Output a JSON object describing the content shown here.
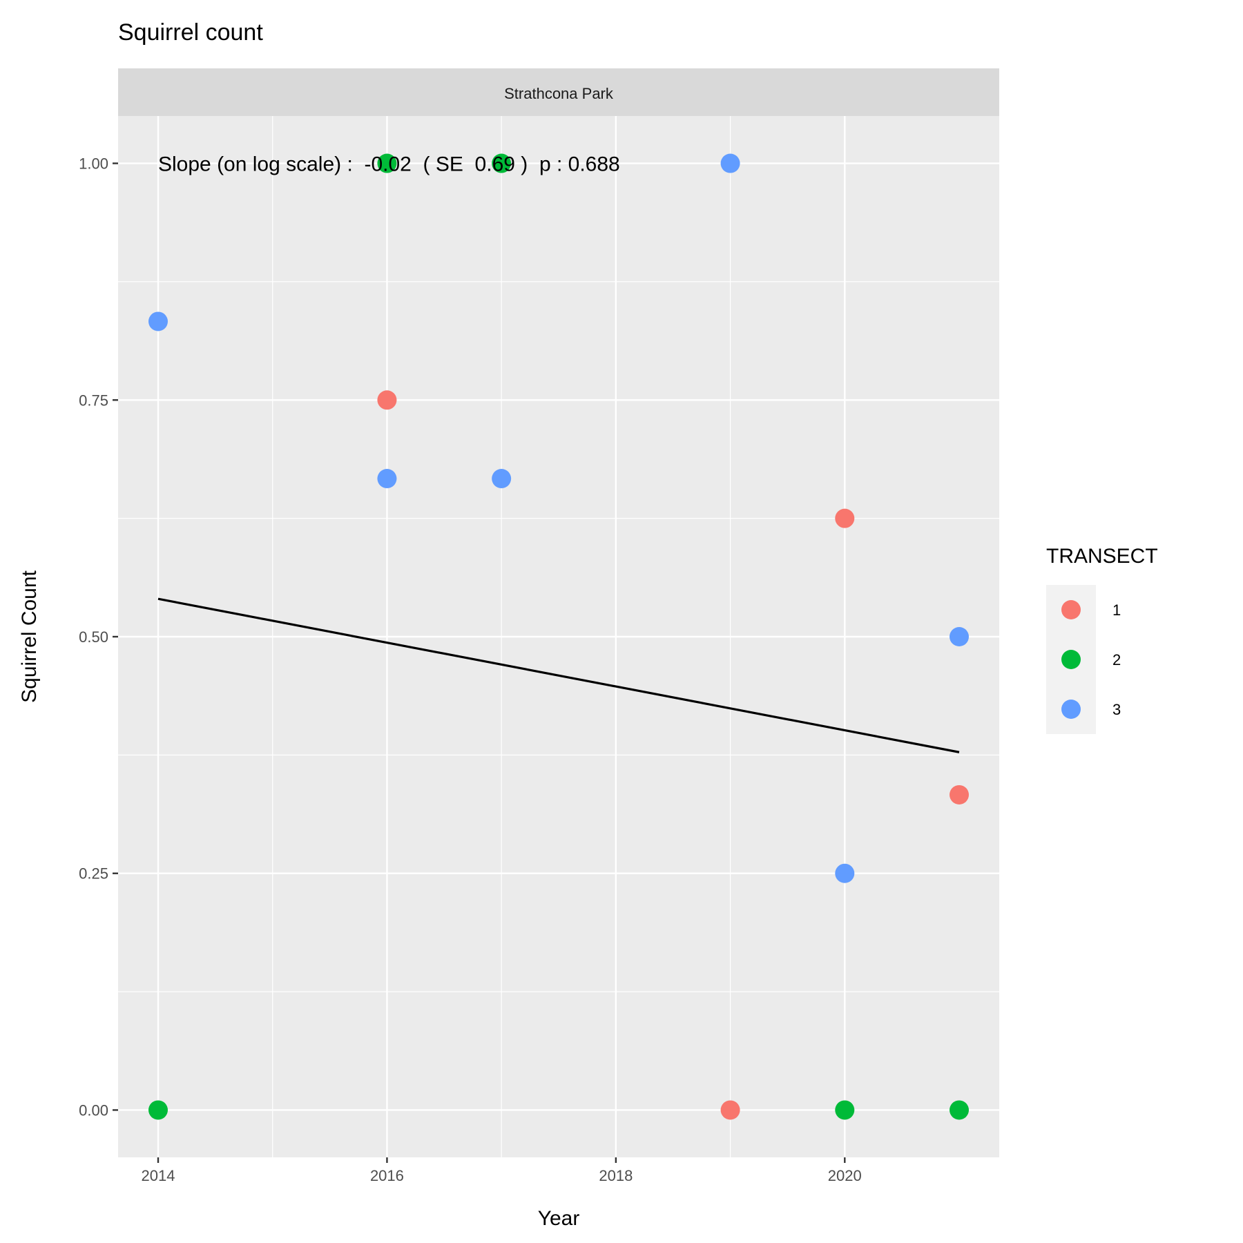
{
  "chart_data": {
    "type": "scatter",
    "title": "Squirrel count",
    "facet_label": "Strathcona Park",
    "xlabel": "Year",
    "ylabel": "Squirrel Count",
    "xlim": [
      2013.65,
      2021.35
    ],
    "ylim": [
      -0.05,
      1.05
    ],
    "x_ticks": [
      2014,
      2016,
      2018,
      2020
    ],
    "x_tick_labels": [
      "2014",
      "2016",
      "2018",
      "2020"
    ],
    "y_ticks": [
      0,
      0.25,
      0.5,
      0.75,
      1
    ],
    "y_tick_labels": [
      "0.00",
      "0.25",
      "0.50",
      "0.75",
      "1.00"
    ],
    "grid": true,
    "legend": {
      "title": "TRANSECT",
      "placement": "right",
      "entries": [
        "1",
        "2",
        "3"
      ],
      "colors": [
        "#F8766D",
        "#00BA38",
        "#619CFF"
      ]
    },
    "series": [
      {
        "name": "1",
        "color": "#F8766D",
        "points": [
          {
            "x": 2016,
            "y": 0.75
          },
          {
            "x": 2019,
            "y": 0
          },
          {
            "x": 2020,
            "y": 0.625
          },
          {
            "x": 2021,
            "y": 0.333
          }
        ]
      },
      {
        "name": "2",
        "color": "#00BA38",
        "points": [
          {
            "x": 2014,
            "y": 0
          },
          {
            "x": 2016,
            "y": 1
          },
          {
            "x": 2017,
            "y": 1
          },
          {
            "x": 2020,
            "y": 0
          },
          {
            "x": 2021,
            "y": 0
          }
        ]
      },
      {
        "name": "3",
        "color": "#619CFF",
        "points": [
          {
            "x": 2014,
            "y": 0.833
          },
          {
            "x": 2016,
            "y": 0.667
          },
          {
            "x": 2017,
            "y": 0.667
          },
          {
            "x": 2019,
            "y": 1
          },
          {
            "x": 2020,
            "y": 0.25
          },
          {
            "x": 2021,
            "y": 0.5
          }
        ]
      }
    ],
    "trend_line": {
      "x": [
        2014,
        2021
      ],
      "y": [
        0.54,
        0.378
      ],
      "color": "#000000"
    },
    "annotation": {
      "text": "Slope (on log scale) :  -0.02  ( SE  0.69 )  p : 0.688",
      "x": 2014,
      "y": 1.0
    }
  }
}
